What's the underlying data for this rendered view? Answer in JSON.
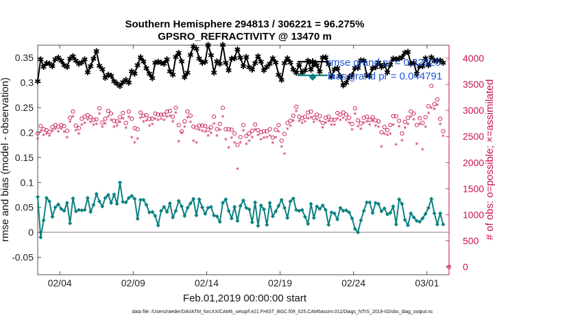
{
  "chart_data": {
    "type": "line",
    "title_line1": "Southern Hemisphere 294813 / 306221 = 96.275%",
    "title_line2": "GPSRO_REFRACTIVITY @ 13470 m",
    "xlabel": "Feb.01,2019 00:00:00 start",
    "ylabel_left": "rmse and bias (model - observation)",
    "ylabel_right": "# of obs: o=possible; ×=assimilated",
    "footer": "data file: /Users/raeder/DAI/ATM_forcXX/CAM6_setup/f.e21.FHIST_BGC.f09_025.CAM6assim.011/Diags_NTrS_2019-02/obs_diag_output.nc",
    "x_range_days": [
      1.5,
      29.5
    ],
    "xticks": [
      {
        "day": 3,
        "label": "02/04"
      },
      {
        "day": 8,
        "label": "02/09"
      },
      {
        "day": 13,
        "label": "02/14"
      },
      {
        "day": 18,
        "label": "02/19"
      },
      {
        "day": 23,
        "label": "02/24"
      },
      {
        "day": 28,
        "label": "03/01"
      }
    ],
    "ylim_left": [
      -0.085,
      0.375
    ],
    "yticks_left": [
      "-0.05",
      "0",
      "0.05",
      "0.1",
      "0.15",
      "0.2",
      "0.25",
      "0.3",
      "0.35"
    ],
    "ylim_right": [
      -150,
      4250
    ],
    "yticks_right": [
      "0",
      "500",
      "1000",
      "1500",
      "2000",
      "2500",
      "3000",
      "3500",
      "4000"
    ],
    "legend": {
      "position": "top-right",
      "entries": [
        "rmse grand pr = 0.32826",
        "bias grand pr = 0.044791"
      ]
    },
    "colors": {
      "rmse": "#000000",
      "bias": "#0b8180",
      "obs": "#c8114f",
      "zero_line": "#b9a9b4"
    },
    "series": [
      {
        "name": "rmse",
        "values": [
          0.303,
          0.347,
          0.332,
          0.339,
          0.338,
          0.333,
          0.347,
          0.35,
          0.344,
          0.335,
          0.332,
          0.348,
          0.353,
          0.344,
          0.338,
          0.341,
          0.347,
          0.321,
          0.333,
          0.348,
          0.363,
          0.334,
          0.327,
          0.31,
          0.316,
          0.314,
          0.303,
          0.298,
          0.293,
          0.301,
          0.306,
          0.3,
          0.323,
          0.318,
          0.335,
          0.351,
          0.343,
          0.329,
          0.318,
          0.309,
          0.34,
          0.342,
          0.34,
          0.338,
          0.347,
          0.323,
          0.316,
          0.352,
          0.36,
          0.343,
          0.311,
          0.32,
          0.356,
          0.373,
          0.368,
          0.348,
          0.34,
          0.342,
          0.376,
          0.355,
          0.32,
          0.343,
          0.338,
          0.376,
          0.34,
          0.325,
          0.348,
          0.349,
          0.367,
          0.35,
          0.333,
          0.352,
          0.331,
          0.326,
          0.339,
          0.353,
          0.342,
          0.325,
          0.332,
          0.338,
          0.349,
          0.341,
          0.316,
          0.306,
          0.339,
          0.349,
          0.341,
          0.326,
          0.32,
          0.336,
          0.32,
          0.325,
          0.344,
          0.326,
          0.337,
          0.335,
          0.322,
          0.35,
          0.351,
          0.337,
          0.312,
          0.327,
          0.329,
          0.313,
          0.295,
          0.3,
          0.311,
          0.315,
          0.33,
          0.33,
          0.345,
          0.344,
          0.315,
          0.314,
          0.329,
          0.331,
          0.341,
          0.332,
          0.336,
          0.321,
          0.336,
          0.348,
          0.347,
          0.348,
          0.351,
          0.36,
          0.362,
          0.338,
          0.34,
          0.318,
          0.333,
          0.333,
          0.349,
          0.335,
          0.351,
          0.345,
          0.344,
          0.345,
          0.34
        ]
      },
      {
        "name": "bias",
        "values": [
          0.071,
          -0.01,
          0.024,
          0.069,
          0.062,
          0.031,
          0.05,
          0.056,
          0.047,
          0.043,
          0.059,
          0.018,
          0.068,
          0.042,
          0.045,
          0.044,
          0.045,
          0.069,
          0.041,
          0.055,
          0.077,
          0.062,
          0.052,
          0.069,
          0.075,
          0.059,
          0.076,
          0.057,
          0.1,
          0.061,
          0.06,
          0.069,
          0.073,
          0.067,
          0.027,
          0.065,
          0.065,
          0.055,
          0.04,
          0.041,
          0.033,
          0.014,
          0.043,
          0.051,
          0.041,
          0.058,
          0.03,
          0.043,
          0.063,
          0.052,
          0.033,
          0.049,
          0.058,
          0.067,
          0.034,
          0.066,
          0.05,
          0.037,
          0.049,
          0.051,
          0.034,
          0.032,
          0.021,
          0.059,
          0.066,
          0.043,
          0.028,
          0.051,
          0.023,
          0.053,
          0.064,
          0.049,
          0.046,
          0.02,
          0.06,
          0.013,
          0.054,
          0.046,
          0.015,
          0.059,
          0.032,
          0.042,
          0.053,
          0.065,
          0.049,
          0.029,
          0.062,
          0.068,
          0.045,
          0.043,
          0.045,
          0.031,
          0.017,
          0.057,
          0.029,
          0.052,
          0.047,
          0.054,
          0.045,
          0.015,
          0.04,
          0.038,
          0.026,
          0.049,
          0.043,
          0.044,
          0.04,
          0.028,
          0.007,
          0.0,
          0.024,
          0.043,
          0.06,
          0.06,
          0.039,
          0.059,
          0.057,
          0.042,
          0.048,
          0.036,
          0.039,
          0.052,
          0.016,
          0.066,
          0.057,
          0.025,
          0.014,
          0.038,
          0.03,
          0.023,
          0.021,
          0.028,
          0.037,
          0.049,
          0.067,
          0.038,
          0.016,
          0.038,
          0.016
        ]
      },
      {
        "name": "possible",
        "values": [
          2560,
          2700,
          2640,
          2620,
          2590,
          2680,
          2720,
          2690,
          2720,
          2700,
          2610,
          2860,
          2980,
          2710,
          2660,
          2840,
          2880,
          2910,
          2870,
          2820,
          2830,
          3040,
          2770,
          2840,
          2990,
          2940,
          2800,
          2790,
          2870,
          2950,
          2760,
          2980,
          2840,
          2660,
          2640,
          2960,
          2900,
          2910,
          2840,
          2840,
          2940,
          2920,
          2920,
          2920,
          2980,
          2990,
          2880,
          3050,
          2720,
          2600,
          2790,
          2980,
          2900,
          2690,
          2670,
          2710,
          2710,
          2700,
          2630,
          2680,
          2880,
          2640,
          2740,
          3050,
          2640,
          2640,
          2630,
          2560,
          2340,
          2490,
          2720,
          2510,
          2560,
          2610,
          2730,
          2620,
          2580,
          2600,
          2600,
          2640,
          2480,
          2630,
          2720,
          2420,
          2550,
          2760,
          2800,
          2900,
          3070,
          2880,
          2850,
          2880,
          2960,
          2980,
          2860,
          2920,
          2890,
          2760,
          2860,
          2880,
          2820,
          2820,
          2950,
          2920,
          2960,
          2920,
          2860,
          2740,
          3040,
          2810,
          2750,
          2860,
          2880,
          2820,
          2870,
          2810,
          2790,
          2580,
          2680,
          2620,
          2720,
          2890,
          2890,
          2800,
          2560,
          2780,
          2860,
          2980,
          2940,
          2720,
          2850,
          2760,
          2870,
          3080,
          3470,
          3120,
          3210,
          2840,
          2600
        ]
      },
      {
        "name": "assimilated",
        "values": [
          2450,
          2600,
          2520,
          2550,
          2510,
          2600,
          2640,
          2590,
          2640,
          2580,
          2480,
          2780,
          2880,
          2610,
          2550,
          2720,
          2750,
          2820,
          2770,
          2720,
          2730,
          2930,
          2680,
          2740,
          2880,
          2810,
          2680,
          2700,
          2770,
          2840,
          2660,
          2870,
          2480,
          2380,
          2450,
          2850,
          2780,
          2800,
          2700,
          2730,
          2830,
          2810,
          2830,
          2810,
          2870,
          2890,
          2780,
          2950,
          2400,
          2560,
          2680,
          2860,
          2770,
          2410,
          2380,
          2620,
          2600,
          2580,
          2510,
          2560,
          2740,
          2510,
          2620,
          2880,
          2440,
          2280,
          2470,
          2380,
          1870,
          2380,
          2610,
          2350,
          2410,
          2480,
          2630,
          2520,
          2440,
          2470,
          2480,
          2510,
          2370,
          2480,
          2590,
          2300,
          2160,
          2640,
          2700,
          2800,
          2980,
          2790,
          2750,
          2780,
          2840,
          2860,
          2770,
          2820,
          2790,
          2670,
          2760,
          2790,
          2720,
          2720,
          2840,
          2810,
          2850,
          2810,
          2760,
          2630,
          2930,
          2690,
          2640,
          2760,
          2780,
          2720,
          2790,
          2700,
          2680,
          2300,
          2540,
          2520,
          2540,
          2720,
          2340,
          2690,
          2420,
          2660,
          2730,
          2880,
          2820,
          2350,
          2730,
          2250,
          2680,
          2940,
          3040,
          3020,
          3100,
          2730,
          2500
        ]
      }
    ]
  }
}
